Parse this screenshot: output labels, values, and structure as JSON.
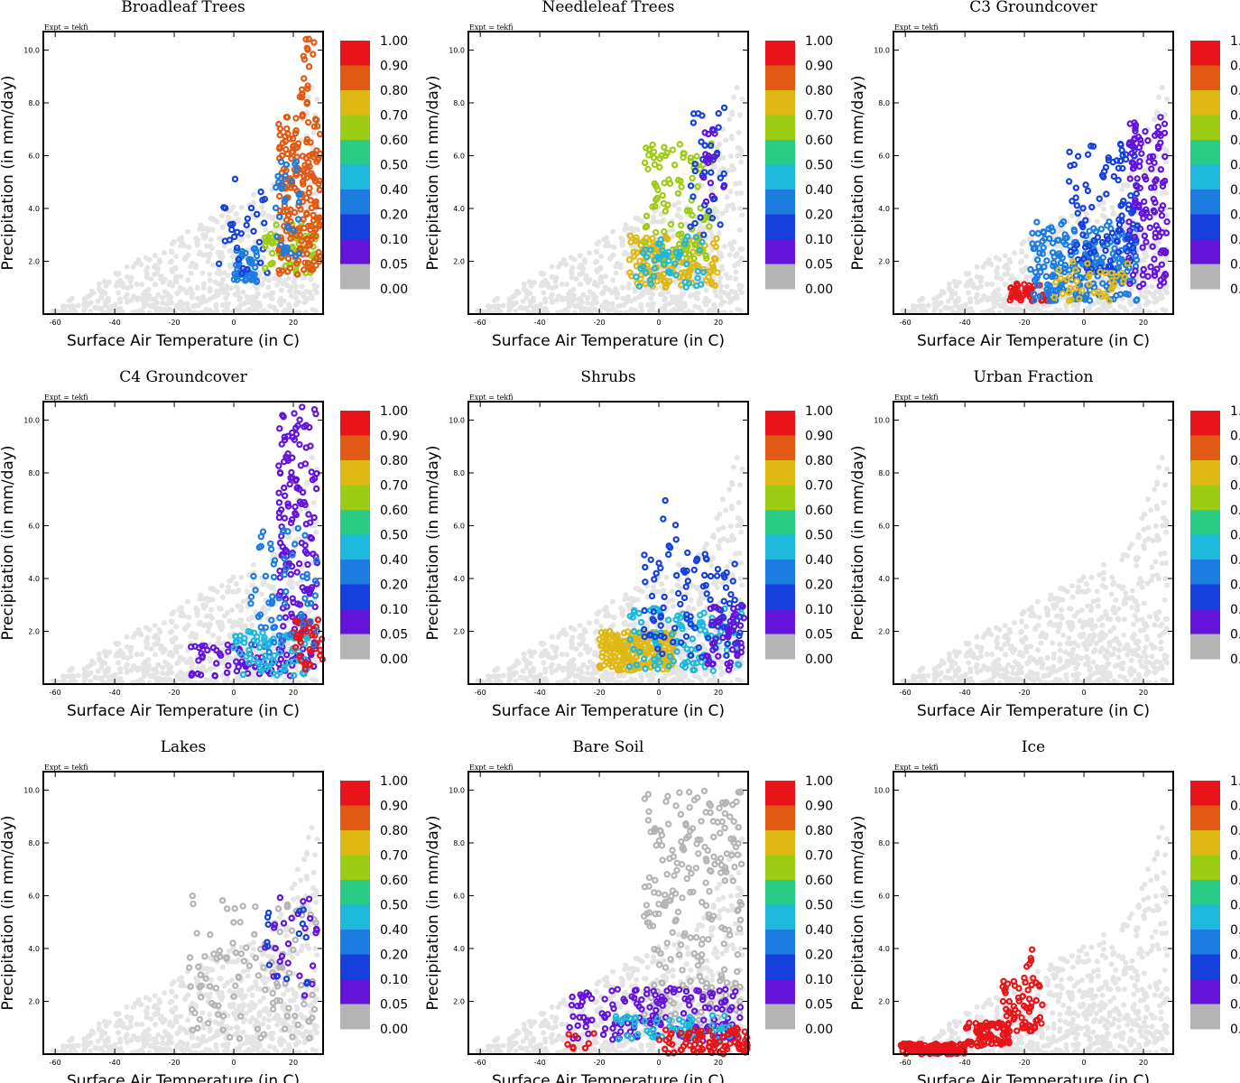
{
  "figure": {
    "expt_label": "Expt = tekfi",
    "xlabel": "Surface Air Temperature (in C)",
    "ylabel": "Precipitation (in mm/day)",
    "xticks": [
      -60,
      -40,
      -20,
      0,
      20
    ],
    "xtick_labels": [
      "-60",
      "-40",
      "-20",
      "0",
      "20"
    ],
    "yticks": [
      2,
      4,
      6,
      8,
      10
    ],
    "ytick_labels": [
      "2.0",
      "4.0",
      "6.0",
      "8.0",
      "10.0"
    ],
    "xlim": [
      -64,
      30
    ],
    "ylim": [
      0,
      10.7
    ]
  },
  "colorbar": {
    "labels": [
      "1.00",
      "0.90",
      "0.80",
      "0.70",
      "0.60",
      "0.50",
      "0.40",
      "0.20",
      "0.10",
      "0.05",
      "0.00"
    ],
    "colors": [
      "#e8141a",
      "#e05a14",
      "#e0b814",
      "#9ccc14",
      "#28cc84",
      "#1eb8dc",
      "#1c7ce0",
      "#1640dc",
      "#6414d8",
      "#b4b4b4"
    ]
  },
  "background_color": "#e4e4e4",
  "chart_data": [
    {
      "type": "scatter",
      "title": "Broadleaf Trees",
      "xlabel": "Surface Air Temperature (in C)",
      "ylabel": "Precipitation (in mm/day)",
      "xlim": [
        -64,
        30
      ],
      "ylim": [
        0,
        10.7
      ],
      "clusters": [
        {
          "x": [
            0,
            8
          ],
          "y": [
            1.2,
            2.5
          ],
          "n": 50,
          "color_index": 6
        },
        {
          "x": [
            -5,
            12
          ],
          "y": [
            1.5,
            5.5
          ],
          "n": 30,
          "color_index": 7
        },
        {
          "x": [
            10,
            28
          ],
          "y": [
            1.5,
            3.5
          ],
          "n": 60,
          "color_index": 3
        },
        {
          "x": [
            15,
            29
          ],
          "y": [
            1.5,
            7.5
          ],
          "n": 200,
          "color_index": 1
        },
        {
          "x": [
            22,
            27
          ],
          "y": [
            7.5,
            10.5
          ],
          "n": 20,
          "color_index": 1
        },
        {
          "x": [
            14,
            22
          ],
          "y": [
            2,
            6
          ],
          "n": 35,
          "color_index": 6
        }
      ]
    },
    {
      "type": "scatter",
      "title": "Needleleaf Trees",
      "xlabel": "Surface Air Temperature (in C)",
      "ylabel": "Precipitation (in mm/day)",
      "xlim": [
        -64,
        30
      ],
      "ylim": [
        0,
        10.7
      ],
      "clusters": [
        {
          "x": [
            -10,
            20
          ],
          "y": [
            1,
            3
          ],
          "n": 140,
          "color_index": 2
        },
        {
          "x": [
            -5,
            18
          ],
          "y": [
            2,
            6.5
          ],
          "n": 90,
          "color_index": 3
        },
        {
          "x": [
            -8,
            15
          ],
          "y": [
            1,
            3
          ],
          "n": 50,
          "color_index": 5
        },
        {
          "x": [
            10,
            22
          ],
          "y": [
            3,
            8
          ],
          "n": 35,
          "color_index": 7
        },
        {
          "x": [
            15,
            22
          ],
          "y": [
            4,
            7
          ],
          "n": 15,
          "color_index": 8
        }
      ]
    },
    {
      "type": "scatter",
      "title": "C3 Groundcover",
      "xlabel": "Surface Air Temperature (in C)",
      "ylabel": "Precipitation (in mm/day)",
      "xlim": [
        -64,
        30
      ],
      "ylim": [
        0,
        10.7
      ],
      "clusters": [
        {
          "x": [
            -25,
            -12
          ],
          "y": [
            0.5,
            1.2
          ],
          "n": 50,
          "color_index": 0
        },
        {
          "x": [
            -18,
            18
          ],
          "y": [
            0.5,
            3.5
          ],
          "n": 220,
          "color_index": 6
        },
        {
          "x": [
            -5,
            18
          ],
          "y": [
            1.5,
            6.5
          ],
          "n": 110,
          "color_index": 7
        },
        {
          "x": [
            15,
            28
          ],
          "y": [
            1,
            7.5
          ],
          "n": 120,
          "color_index": 8
        },
        {
          "x": [
            -10,
            15
          ],
          "y": [
            0.5,
            2
          ],
          "n": 40,
          "color_index": 2
        }
      ]
    },
    {
      "type": "scatter",
      "title": "C4 Groundcover",
      "xlabel": "Surface Air Temperature (in C)",
      "ylabel": "Precipitation (in mm/day)",
      "xlim": [
        -64,
        30
      ],
      "ylim": [
        0,
        10.7
      ],
      "clusters": [
        {
          "x": [
            -15,
            28
          ],
          "y": [
            0.3,
            1.5
          ],
          "n": 80,
          "color_index": 8
        },
        {
          "x": [
            15,
            28
          ],
          "y": [
            1.5,
            10.5
          ],
          "n": 140,
          "color_index": 8
        },
        {
          "x": [
            0,
            25
          ],
          "y": [
            0.3,
            2
          ],
          "n": 80,
          "color_index": 5
        },
        {
          "x": [
            20,
            30
          ],
          "y": [
            0.5,
            2.5
          ],
          "n": 40,
          "color_index": 0
        },
        {
          "x": [
            5,
            28
          ],
          "y": [
            1,
            6
          ],
          "n": 60,
          "color_index": 6
        }
      ]
    },
    {
      "type": "scatter",
      "title": "Shrubs",
      "xlabel": "Surface Air Temperature (in C)",
      "ylabel": "Precipitation (in mm/day)",
      "xlim": [
        -64,
        30
      ],
      "ylim": [
        0,
        10.7
      ],
      "clusters": [
        {
          "x": [
            -20,
            5
          ],
          "y": [
            0.5,
            2
          ],
          "n": 220,
          "color_index": 2
        },
        {
          "x": [
            -10,
            28
          ],
          "y": [
            0.5,
            3
          ],
          "n": 110,
          "color_index": 5
        },
        {
          "x": [
            -5,
            28
          ],
          "y": [
            1,
            5
          ],
          "n": 90,
          "color_index": 7
        },
        {
          "x": [
            0,
            10
          ],
          "y": [
            4,
            7
          ],
          "n": 10,
          "color_index": 7
        },
        {
          "x": [
            15,
            29
          ],
          "y": [
            0.5,
            3
          ],
          "n": 50,
          "color_index": 8
        }
      ]
    },
    {
      "type": "scatter",
      "title": "Urban Fraction",
      "xlabel": "Surface Air Temperature (in C)",
      "ylabel": "Precipitation (in mm/day)",
      "xlim": [
        -64,
        30
      ],
      "ylim": [
        0,
        10.7
      ],
      "clusters": []
    },
    {
      "type": "scatter",
      "title": "Lakes",
      "xlabel": "Surface Air Temperature (in C)",
      "ylabel": "Precipitation (in mm/day)",
      "xlim": [
        -64,
        30
      ],
      "ylim": [
        0,
        10.7
      ],
      "clusters": [
        {
          "x": [
            -15,
            28
          ],
          "y": [
            0.5,
            6
          ],
          "n": 110,
          "color_index": 9
        },
        {
          "x": [
            10,
            28
          ],
          "y": [
            2,
            6.5
          ],
          "n": 25,
          "color_index": 8
        },
        {
          "x": [
            10,
            25
          ],
          "y": [
            2.5,
            5.5
          ],
          "n": 15,
          "color_index": 7
        }
      ]
    },
    {
      "type": "scatter",
      "title": "Bare Soil",
      "xlabel": "Surface Air Temperature (in C)",
      "ylabel": "Precipitation (in mm/day)",
      "xlim": [
        -64,
        30
      ],
      "ylim": [
        0,
        10.7
      ],
      "clusters": [
        {
          "x": [
            -5,
            28
          ],
          "y": [
            1,
            10
          ],
          "n": 240,
          "color_index": 9
        },
        {
          "x": [
            -30,
            28
          ],
          "y": [
            0.5,
            2.5
          ],
          "n": 160,
          "color_index": 8
        },
        {
          "x": [
            -15,
            28
          ],
          "y": [
            0.5,
            1.5
          ],
          "n": 60,
          "color_index": 5
        },
        {
          "x": [
            0,
            30
          ],
          "y": [
            0,
            1
          ],
          "n": 90,
          "color_index": 0
        },
        {
          "x": [
            -32,
            -20
          ],
          "y": [
            0.2,
            0.8
          ],
          "n": 8,
          "color_index": 0
        }
      ]
    },
    {
      "type": "scatter",
      "title": "Ice",
      "xlabel": "Surface Air Temperature (in C)",
      "ylabel": "Precipitation (in mm/day)",
      "xlim": [
        -64,
        30
      ],
      "ylim": [
        0,
        10.7
      ],
      "clusters": [
        {
          "x": [
            -62,
            -40
          ],
          "y": [
            0,
            0.4
          ],
          "n": 140,
          "color_index": 0
        },
        {
          "x": [
            -40,
            -25
          ],
          "y": [
            0.3,
            1.2
          ],
          "n": 80,
          "color_index": 0
        },
        {
          "x": [
            -28,
            -14
          ],
          "y": [
            0.8,
            3
          ],
          "n": 60,
          "color_index": 0
        },
        {
          "x": [
            -20,
            -17
          ],
          "y": [
            3,
            4
          ],
          "n": 5,
          "color_index": 0
        }
      ]
    }
  ]
}
